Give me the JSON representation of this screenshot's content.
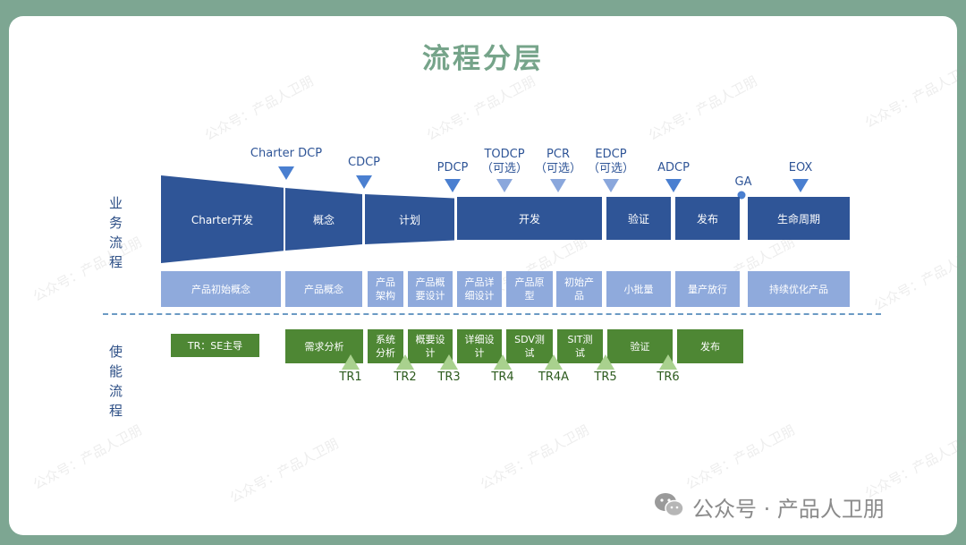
{
  "title": "流程分层",
  "side_labels": {
    "business": "业务流程",
    "enabling": "使能流程"
  },
  "gates": [
    {
      "line1": "Charter DCP",
      "line2": ""
    },
    {
      "line1": "CDCP",
      "line2": ""
    },
    {
      "line1": "PDCP",
      "line2": ""
    },
    {
      "line1": "TODCP",
      "line2": "（可选）"
    },
    {
      "line1": "PCR",
      "line2": "（可选）"
    },
    {
      "line1": "EDCP",
      "line2": "（可选）"
    },
    {
      "line1": "ADCP",
      "line2": ""
    },
    {
      "line1": "GA",
      "line2": ""
    },
    {
      "line1": "EOX",
      "line2": ""
    }
  ],
  "stages": [
    "Charter开发",
    "概念",
    "计划",
    "开发",
    "验证",
    "发布",
    "生命周期"
  ],
  "sub_stages": [
    "产品初始概念",
    "产品概念",
    "产品\n架构",
    "产品概\n要设计",
    "产品详\n细设计",
    "产品原\n型",
    "初始产\n品",
    "小批量",
    "量产放行",
    "持续优化产品"
  ],
  "enabling_steps": [
    "TR：SE主导",
    "需求分析",
    "系统\n分析",
    "概要设\n计",
    "详细设\n计",
    "SDV测\n试",
    "SIT测\n试",
    "验证",
    "发布"
  ],
  "tr_points": [
    "TR1",
    "TR2",
    "TR3",
    "TR4",
    "TR4A",
    "TR5",
    "TR6"
  ],
  "watermark": "公众号：产品人卫朋",
  "footer": {
    "text": "公众号 · 产品人卫朋",
    "icon": "wechat-icon"
  },
  "colors": {
    "frame": "#7da692",
    "title": "#76a48a",
    "stage": "#2f5597",
    "sub_stage": "#8faadc",
    "gate_marker": "#4a7fd0",
    "enabling_box": "#4e8734",
    "tr_marker": "#a9d18e"
  }
}
